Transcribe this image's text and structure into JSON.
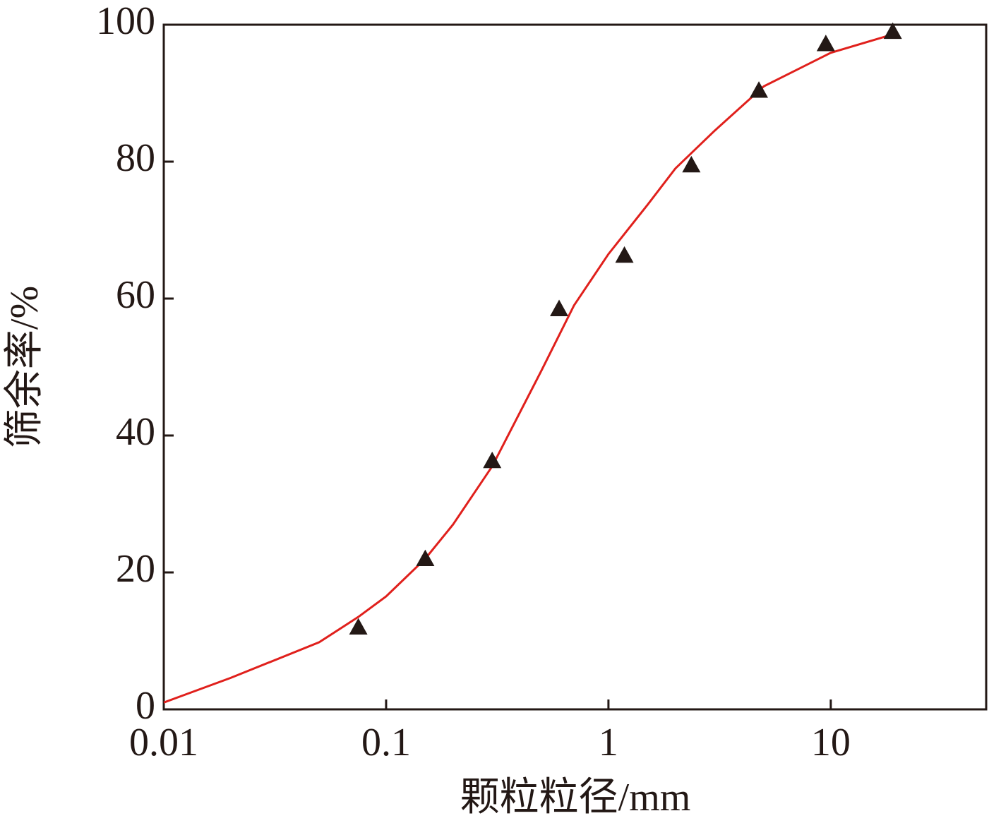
{
  "chart_data": {
    "type": "scatter",
    "x_label": "颗粒粒径/mm",
    "y_label": "筛余率/%",
    "xlim": [
      0.01,
      50
    ],
    "ylim": [
      0,
      100
    ],
    "xticks": [
      0.01,
      0.1,
      1,
      10
    ],
    "yticks": [
      0,
      20,
      40,
      60,
      80,
      100
    ],
    "x_scale": "log",
    "grid": false,
    "series": [
      {
        "kind": "line",
        "color": "#e0201c",
        "x": [
          0.01,
          0.02,
          0.05,
          0.075,
          0.1,
          0.15,
          0.2,
          0.3,
          0.5,
          0.7,
          1,
          1.5,
          2,
          3,
          5,
          10,
          20
        ],
        "values": [
          1.0,
          4.6,
          9.8,
          13.5,
          16.5,
          22,
          27,
          35.5,
          49.5,
          59,
          66.5,
          73.7,
          79,
          84.5,
          91,
          95.9,
          98.8
        ]
      },
      {
        "kind": "marker",
        "marker": "triangle",
        "color": "#231815",
        "x": [
          0.075,
          0.15,
          0.3,
          0.6,
          1.18,
          2.36,
          4.75,
          9.5,
          19
        ],
        "values": [
          12,
          22,
          36.3,
          58.5,
          66.3,
          79.5,
          90.4,
          97.2,
          99
        ]
      }
    ]
  }
}
